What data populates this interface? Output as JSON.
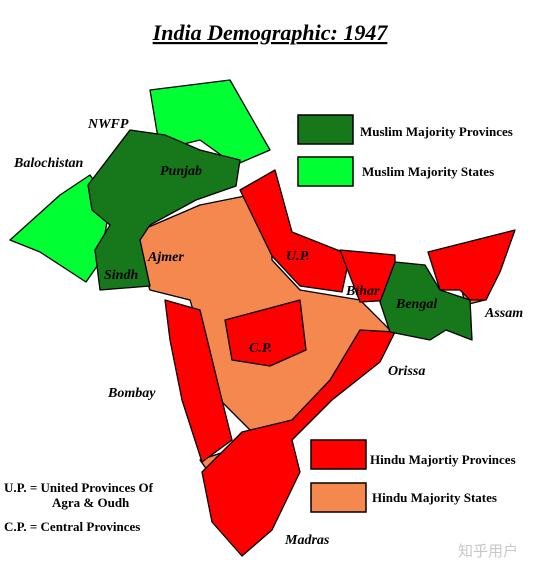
{
  "title": "India Demographic: 1947",
  "legend": [
    {
      "label": "Muslim Majority Provinces",
      "color": "#16781a"
    },
    {
      "label": "Muslim Majority States",
      "color": "#00ff33"
    },
    {
      "label": "Hindu Majortiy Provinces",
      "color": "#ff0000"
    },
    {
      "label": "Hindu Majority States",
      "color": "#f4884f"
    }
  ],
  "regions": [
    "NWFP",
    "Balochistan",
    "Punjab",
    "Sindh",
    "Ajmer",
    "U.P.",
    "Bihar",
    "Bengal",
    "Assam",
    "C.P.",
    "Orissa",
    "Bombay",
    "Madras"
  ],
  "notes": [
    "U.P. = United Provinces Of",
    "Agra & Oudh",
    "C.P. = Central Provinces"
  ],
  "watermark": "知乎用户"
}
